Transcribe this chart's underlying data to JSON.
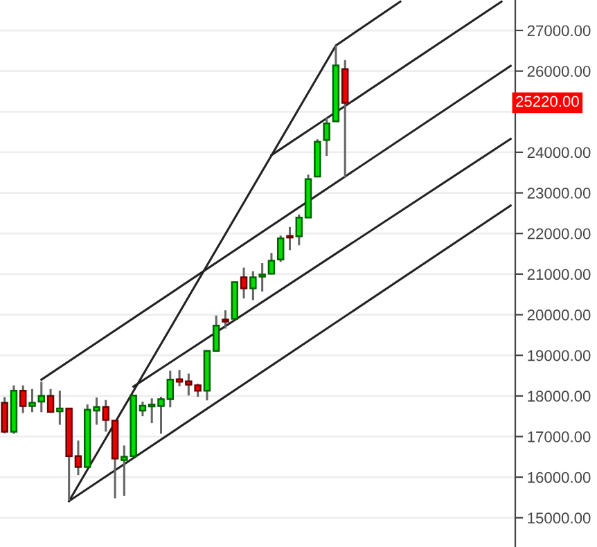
{
  "chart_data": {
    "type": "candlestick",
    "categories": [
      null,
      null,
      null,
      null,
      null,
      null,
      null,
      null,
      null,
      null,
      null,
      null,
      null,
      null,
      null,
      null,
      null,
      null,
      null,
      null,
      null,
      null,
      null,
      null,
      null,
      null,
      null,
      null,
      null,
      null,
      null,
      null,
      null,
      null,
      null,
      null,
      null,
      null,
      null,
      null,
      null,
      null,
      null,
      null,
      null,
      null,
      null,
      null,
      null,
      null,
      null,
      null,
      null,
      null,
      null,
      null
    ],
    "ohlc": [
      [
        17830,
        17970,
        17080,
        17120
      ],
      [
        17120,
        18260,
        17070,
        18130
      ],
      [
        18130,
        18260,
        17580,
        17750
      ],
      [
        17750,
        18170,
        17600,
        17830
      ],
      [
        17860,
        18350,
        17600,
        18000
      ],
      [
        18000,
        18170,
        17580,
        17610
      ],
      [
        17620,
        18130,
        17290,
        17690
      ],
      [
        17690,
        17700,
        15420,
        16520
      ],
      [
        16520,
        16900,
        16050,
        16250
      ],
      [
        16250,
        17790,
        16250,
        17660
      ],
      [
        17640,
        17960,
        17290,
        17730
      ],
      [
        17730,
        17900,
        17120,
        17410
      ],
      [
        17390,
        17400,
        15480,
        16460
      ],
      [
        16420,
        16780,
        15540,
        16500
      ],
      [
        16520,
        18020,
        16510,
        18010
      ],
      [
        17640,
        17860,
        17500,
        17760
      ],
      [
        17740,
        17940,
        17330,
        17790
      ],
      [
        17750,
        17980,
        17070,
        17920
      ],
      [
        17920,
        18620,
        17720,
        18400
      ],
      [
        18410,
        18640,
        18240,
        18350
      ],
      [
        18360,
        18550,
        18010,
        18280
      ],
      [
        18260,
        18300,
        17980,
        18130
      ],
      [
        18130,
        19120,
        17890,
        19110
      ],
      [
        19110,
        19980,
        19100,
        19730
      ],
      [
        19880,
        20110,
        19660,
        19830
      ],
      [
        19900,
        20820,
        19890,
        20800
      ],
      [
        20920,
        21160,
        20400,
        20650
      ],
      [
        20650,
        21070,
        20360,
        20920
      ],
      [
        20940,
        21270,
        20570,
        20990
      ],
      [
        21010,
        21520,
        20990,
        21330
      ],
      [
        21360,
        21950,
        21300,
        21880
      ],
      [
        21940,
        22160,
        21590,
        21900
      ],
      [
        21930,
        22470,
        21710,
        22390
      ],
      [
        22390,
        23450,
        22380,
        23340
      ],
      [
        23400,
        24320,
        23390,
        24260
      ],
      [
        24300,
        24850,
        23910,
        24710
      ],
      [
        24760,
        26630,
        24750,
        26140
      ],
      [
        26050,
        26270,
        23380,
        25220
      ],
      null,
      null,
      null,
      null,
      null,
      null,
      null,
      null,
      null,
      null,
      null,
      null,
      null,
      null,
      null,
      null,
      null,
      null
    ],
    "colors": [
      "#ee0000",
      "#00dd00",
      "#ee0000",
      "#00dd00",
      "#00dd00",
      "#ee0000",
      "#00dd00",
      "#ee0000",
      "#ee0000",
      "#00dd00",
      "#00dd00",
      "#ee0000",
      "#ee0000",
      "#00dd00",
      "#00dd00",
      "#00dd00",
      "#00dd00",
      "#00dd00",
      "#00dd00",
      "#ee0000",
      "#ee0000",
      "#ee0000",
      "#00dd00",
      "#00dd00",
      "#ee0000",
      "#00dd00",
      "#ee0000",
      "#00dd00",
      "#00dd00",
      "#00dd00",
      "#00dd00",
      "#ee0000",
      "#00dd00",
      "#00dd00",
      "#00dd00",
      "#00dd00",
      "#00dd00",
      "#ee0000",
      null,
      null,
      null,
      null,
      null,
      null,
      null,
      null,
      null,
      null,
      null,
      null,
      null,
      null,
      null,
      null,
      null,
      null
    ],
    "series": [
      {
        "type": "line",
        "color": "#222222",
        "values": [
          null,
          null,
          null,
          null,
          null,
          null,
          null,
          15410,
          null,
          null,
          null,
          null,
          null,
          null,
          null,
          null,
          null,
          null,
          null,
          null,
          null,
          null,
          null,
          null,
          null,
          null,
          null,
          null,
          null,
          null,
          null,
          null,
          null,
          null,
          null,
          null,
          26630,
          null,
          null,
          null,
          null,
          null,
          null,
          27710,
          null,
          null,
          null,
          null,
          null,
          null,
          null,
          null,
          null,
          null,
          null,
          null
        ]
      },
      {
        "type": "line",
        "color": "#222222",
        "values": [
          null,
          null,
          null,
          null,
          null,
          null,
          null,
          null,
          null,
          null,
          null,
          null,
          null,
          null,
          null,
          null,
          null,
          null,
          null,
          null,
          null,
          null,
          null,
          null,
          null,
          null,
          null,
          null,
          null,
          23930,
          null,
          null,
          null,
          null,
          null,
          null,
          null,
          null,
          null,
          null,
          null,
          null,
          null,
          null,
          null,
          null,
          null,
          null,
          null,
          null,
          null,
          null,
          null,
          null,
          27710,
          null
        ]
      },
      {
        "type": "line",
        "color": "#222222",
        "values": [
          null,
          null,
          null,
          null,
          18400,
          null,
          null,
          null,
          null,
          null,
          null,
          null,
          null,
          null,
          null,
          null,
          null,
          null,
          null,
          null,
          null,
          null,
          null,
          null,
          null,
          null,
          null,
          null,
          null,
          null,
          null,
          null,
          null,
          null,
          null,
          null,
          null,
          null,
          null,
          null,
          null,
          null,
          null,
          null,
          null,
          null,
          null,
          null,
          null,
          null,
          null,
          null,
          null,
          null,
          null,
          26130
        ]
      },
      {
        "type": "line",
        "color": "#222222",
        "values": [
          null,
          null,
          null,
          null,
          null,
          null,
          null,
          null,
          null,
          null,
          null,
          null,
          null,
          null,
          18230,
          null,
          null,
          null,
          null,
          null,
          null,
          null,
          null,
          null,
          null,
          null,
          null,
          null,
          null,
          null,
          null,
          null,
          null,
          null,
          null,
          null,
          null,
          null,
          null,
          null,
          null,
          null,
          null,
          null,
          null,
          null,
          null,
          null,
          null,
          null,
          null,
          null,
          null,
          null,
          null,
          24330
        ]
      },
      {
        "type": "line",
        "color": "#222222",
        "values": [
          null,
          null,
          null,
          null,
          null,
          null,
          null,
          15410,
          null,
          null,
          null,
          null,
          null,
          null,
          null,
          null,
          null,
          null,
          null,
          null,
          null,
          null,
          null,
          null,
          null,
          null,
          null,
          null,
          null,
          null,
          null,
          null,
          null,
          null,
          null,
          null,
          null,
          null,
          null,
          null,
          null,
          null,
          null,
          null,
          null,
          null,
          null,
          null,
          null,
          null,
          null,
          null,
          null,
          null,
          null,
          22690
        ]
      }
    ],
    "ylim": [
      14280,
      27750
    ],
    "yticks": [
      {
        "value": 15000,
        "label": "15000.00"
      },
      {
        "value": 16000,
        "label": "16000.00"
      },
      {
        "value": 17000,
        "label": "17000.00"
      },
      {
        "value": 18000,
        "label": "18000.00"
      },
      {
        "value": 19000,
        "label": "19000.00"
      },
      {
        "value": 20000,
        "label": "20000.00"
      },
      {
        "value": 21000,
        "label": "21000.00"
      },
      {
        "value": 22000,
        "label": "22000.00"
      },
      {
        "value": 23000,
        "label": "23000.00"
      },
      {
        "value": 24000,
        "label": "24000.00"
      },
      {
        "value": 25000,
        "label": null
      },
      {
        "value": 26000,
        "label": "26000.00"
      },
      {
        "value": 27000,
        "label": "27000.00"
      }
    ],
    "annotations": [
      "25220.00"
    ],
    "grid": "y",
    "tick_labels": "y"
  }
}
